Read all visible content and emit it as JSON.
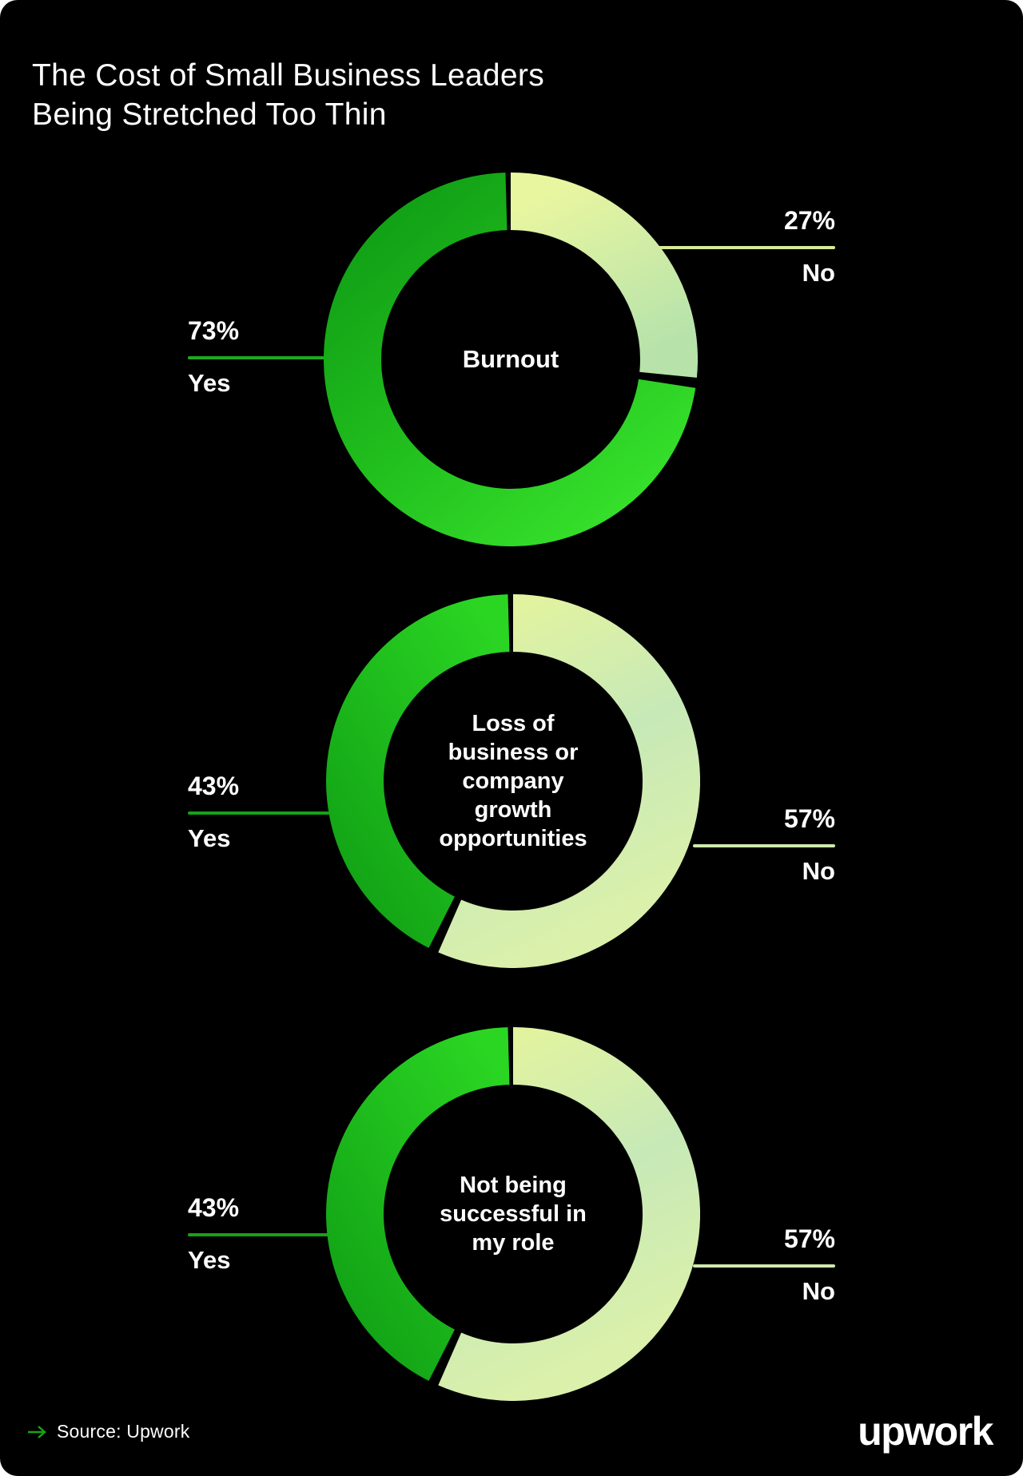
{
  "page": {
    "background": "#ffffff",
    "card_color": "#000000"
  },
  "header": {
    "title": "The Cost of Small Business Leaders\nBeing Stretched Too Thin"
  },
  "chart_data": [
    {
      "type": "donut",
      "center_label": "Burnout",
      "values_unit": "percent",
      "labels_position": {
        "yes": "left",
        "no": "right"
      },
      "series": [
        {
          "name": "Yes",
          "value": 73,
          "display": "73%"
        },
        {
          "name": "No",
          "value": 27,
          "display": "27%"
        }
      ],
      "gradients": {
        "yes": {
          "dir": [
            0,
            0,
            0.85,
            1
          ],
          "stops": [
            "#0f9b15",
            "#20bd1d",
            "#36e02b"
          ]
        },
        "no": {
          "dir": [
            0.1,
            0,
            0.55,
            1
          ],
          "stops": [
            "#e9f6a0",
            "#b7e3ab"
          ]
        }
      },
      "colors": {
        "yes_line": "#1fa81e",
        "no_line": "#d8eb98"
      }
    },
    {
      "type": "donut",
      "center_label": "Loss of business or company growth opportunities",
      "values_unit": "percent",
      "labels_position": {
        "yes": "left",
        "no": "right"
      },
      "series": [
        {
          "name": "Yes",
          "value": 43,
          "display": "43%"
        },
        {
          "name": "No",
          "value": 57,
          "display": "57%"
        }
      ],
      "gradients": {
        "yes": {
          "dir": [
            0.9,
            0,
            0.1,
            1
          ],
          "stops": [
            "#2bd623",
            "#12a316"
          ]
        },
        "no": {
          "dir": [
            0.15,
            0,
            0.5,
            1
          ],
          "stops": [
            "#e2f3a0",
            "#c7e9b7",
            "#daf0ab"
          ]
        }
      },
      "colors": {
        "yes_line": "#17a117",
        "no_line": "#cfeaad"
      }
    },
    {
      "type": "donut",
      "center_label": "Not being successful in my role",
      "values_unit": "percent",
      "labels_position": {
        "yes": "left",
        "no": "right"
      },
      "series": [
        {
          "name": "Yes",
          "value": 43,
          "display": "43%"
        },
        {
          "name": "No",
          "value": 57,
          "display": "57%"
        }
      ],
      "gradients": {
        "yes": {
          "dir": [
            0.9,
            0,
            0.1,
            1
          ],
          "stops": [
            "#2bd623",
            "#12a316"
          ]
        },
        "no": {
          "dir": [
            0.15,
            0,
            0.5,
            1
          ],
          "stops": [
            "#e2f3a0",
            "#c7e9b7",
            "#daf0ab"
          ]
        }
      },
      "colors": {
        "yes_line": "#17a117",
        "no_line": "#cfeaad"
      }
    }
  ],
  "footer": {
    "source_label": "Source: Upwork",
    "arrow_color": "#17a417",
    "logo_text": "upwork"
  }
}
